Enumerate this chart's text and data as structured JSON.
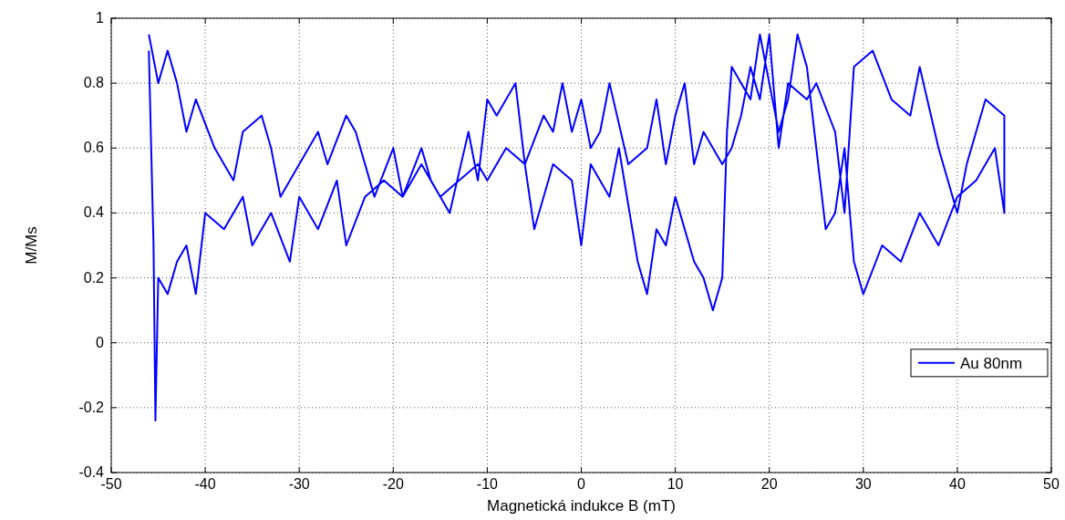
{
  "chart_data": {
    "type": "line",
    "xlabel": "Magnetická indukce B (mT)",
    "ylabel": "M/Ms",
    "xlim": [
      -50,
      50
    ],
    "xticks": [
      -50,
      -40,
      -30,
      -20,
      -10,
      0,
      10,
      20,
      30,
      40,
      50
    ],
    "ylim": [
      -0.4,
      1
    ],
    "yticks": [
      -0.4,
      -0.2,
      0,
      0.2,
      0.4,
      0.6,
      0.8,
      1
    ],
    "grid": true,
    "legend": "bottom right",
    "line_style": "solid",
    "series": [
      {
        "name": "Au 80nm",
        "color": "#0000ff",
        "x": [
          -46,
          -45.5,
          -45.3,
          -45,
          -44,
          -43,
          -42,
          -41,
          -40,
          -38,
          -36,
          -35,
          -33,
          -31,
          -30,
          -28,
          -26,
          -25,
          -23,
          -21,
          -19,
          -17,
          -15,
          -13,
          -11,
          -10,
          -8,
          -6,
          -5,
          -3,
          -1,
          0,
          1,
          3,
          4,
          6,
          7,
          8,
          9,
          10,
          12,
          13,
          14,
          15,
          15.5,
          16,
          18,
          19,
          20,
          21,
          22,
          23,
          24,
          25,
          26,
          27,
          28,
          29,
          30,
          32,
          34,
          36,
          38,
          40,
          42,
          44,
          45,
          45,
          43,
          41,
          40,
          38,
          36,
          35,
          33,
          31,
          29,
          28,
          27,
          25,
          24,
          22,
          21,
          20,
          19,
          18,
          17,
          16,
          15,
          13,
          12,
          11,
          10,
          9,
          8,
          7,
          5,
          3,
          2,
          1,
          0,
          -1,
          -2,
          -3,
          -4,
          -6,
          -7,
          -9,
          -10,
          -11,
          -12,
          -14,
          -16,
          -17,
          -19,
          -20,
          -22,
          -24,
          -25,
          -27,
          -28,
          -30,
          -32,
          -33,
          -34,
          -36,
          -37,
          -39,
          -41,
          -42,
          -43,
          -44,
          -45,
          -46
        ],
        "values": [
          0.9,
          0.3,
          -0.24,
          0.2,
          0.15,
          0.25,
          0.3,
          0.15,
          0.4,
          0.35,
          0.45,
          0.3,
          0.4,
          0.25,
          0.45,
          0.35,
          0.5,
          0.3,
          0.45,
          0.5,
          0.45,
          0.55,
          0.45,
          0.5,
          0.55,
          0.5,
          0.6,
          0.55,
          0.35,
          0.55,
          0.5,
          0.3,
          0.55,
          0.45,
          0.6,
          0.25,
          0.15,
          0.35,
          0.3,
          0.45,
          0.25,
          0.2,
          0.1,
          0.2,
          0.65,
          0.85,
          0.75,
          0.95,
          0.8,
          0.65,
          0.75,
          0.95,
          0.85,
          0.6,
          0.35,
          0.4,
          0.6,
          0.25,
          0.15,
          0.3,
          0.25,
          0.4,
          0.3,
          0.45,
          0.5,
          0.6,
          0.4,
          0.7,
          0.75,
          0.55,
          0.4,
          0.6,
          0.85,
          0.7,
          0.75,
          0.9,
          0.85,
          0.4,
          0.65,
          0.8,
          0.75,
          0.8,
          0.6,
          0.95,
          0.75,
          0.85,
          0.7,
          0.6,
          0.55,
          0.65,
          0.55,
          0.8,
          0.7,
          0.55,
          0.75,
          0.6,
          0.55,
          0.8,
          0.65,
          0.6,
          0.75,
          0.65,
          0.8,
          0.65,
          0.7,
          0.55,
          0.8,
          0.7,
          0.75,
          0.5,
          0.65,
          0.4,
          0.5,
          0.6,
          0.45,
          0.6,
          0.45,
          0.65,
          0.7,
          0.55,
          0.65,
          0.55,
          0.45,
          0.6,
          0.7,
          0.65,
          0.5,
          0.6,
          0.75,
          0.65,
          0.8,
          0.9,
          0.8,
          0.95
        ]
      }
    ]
  }
}
